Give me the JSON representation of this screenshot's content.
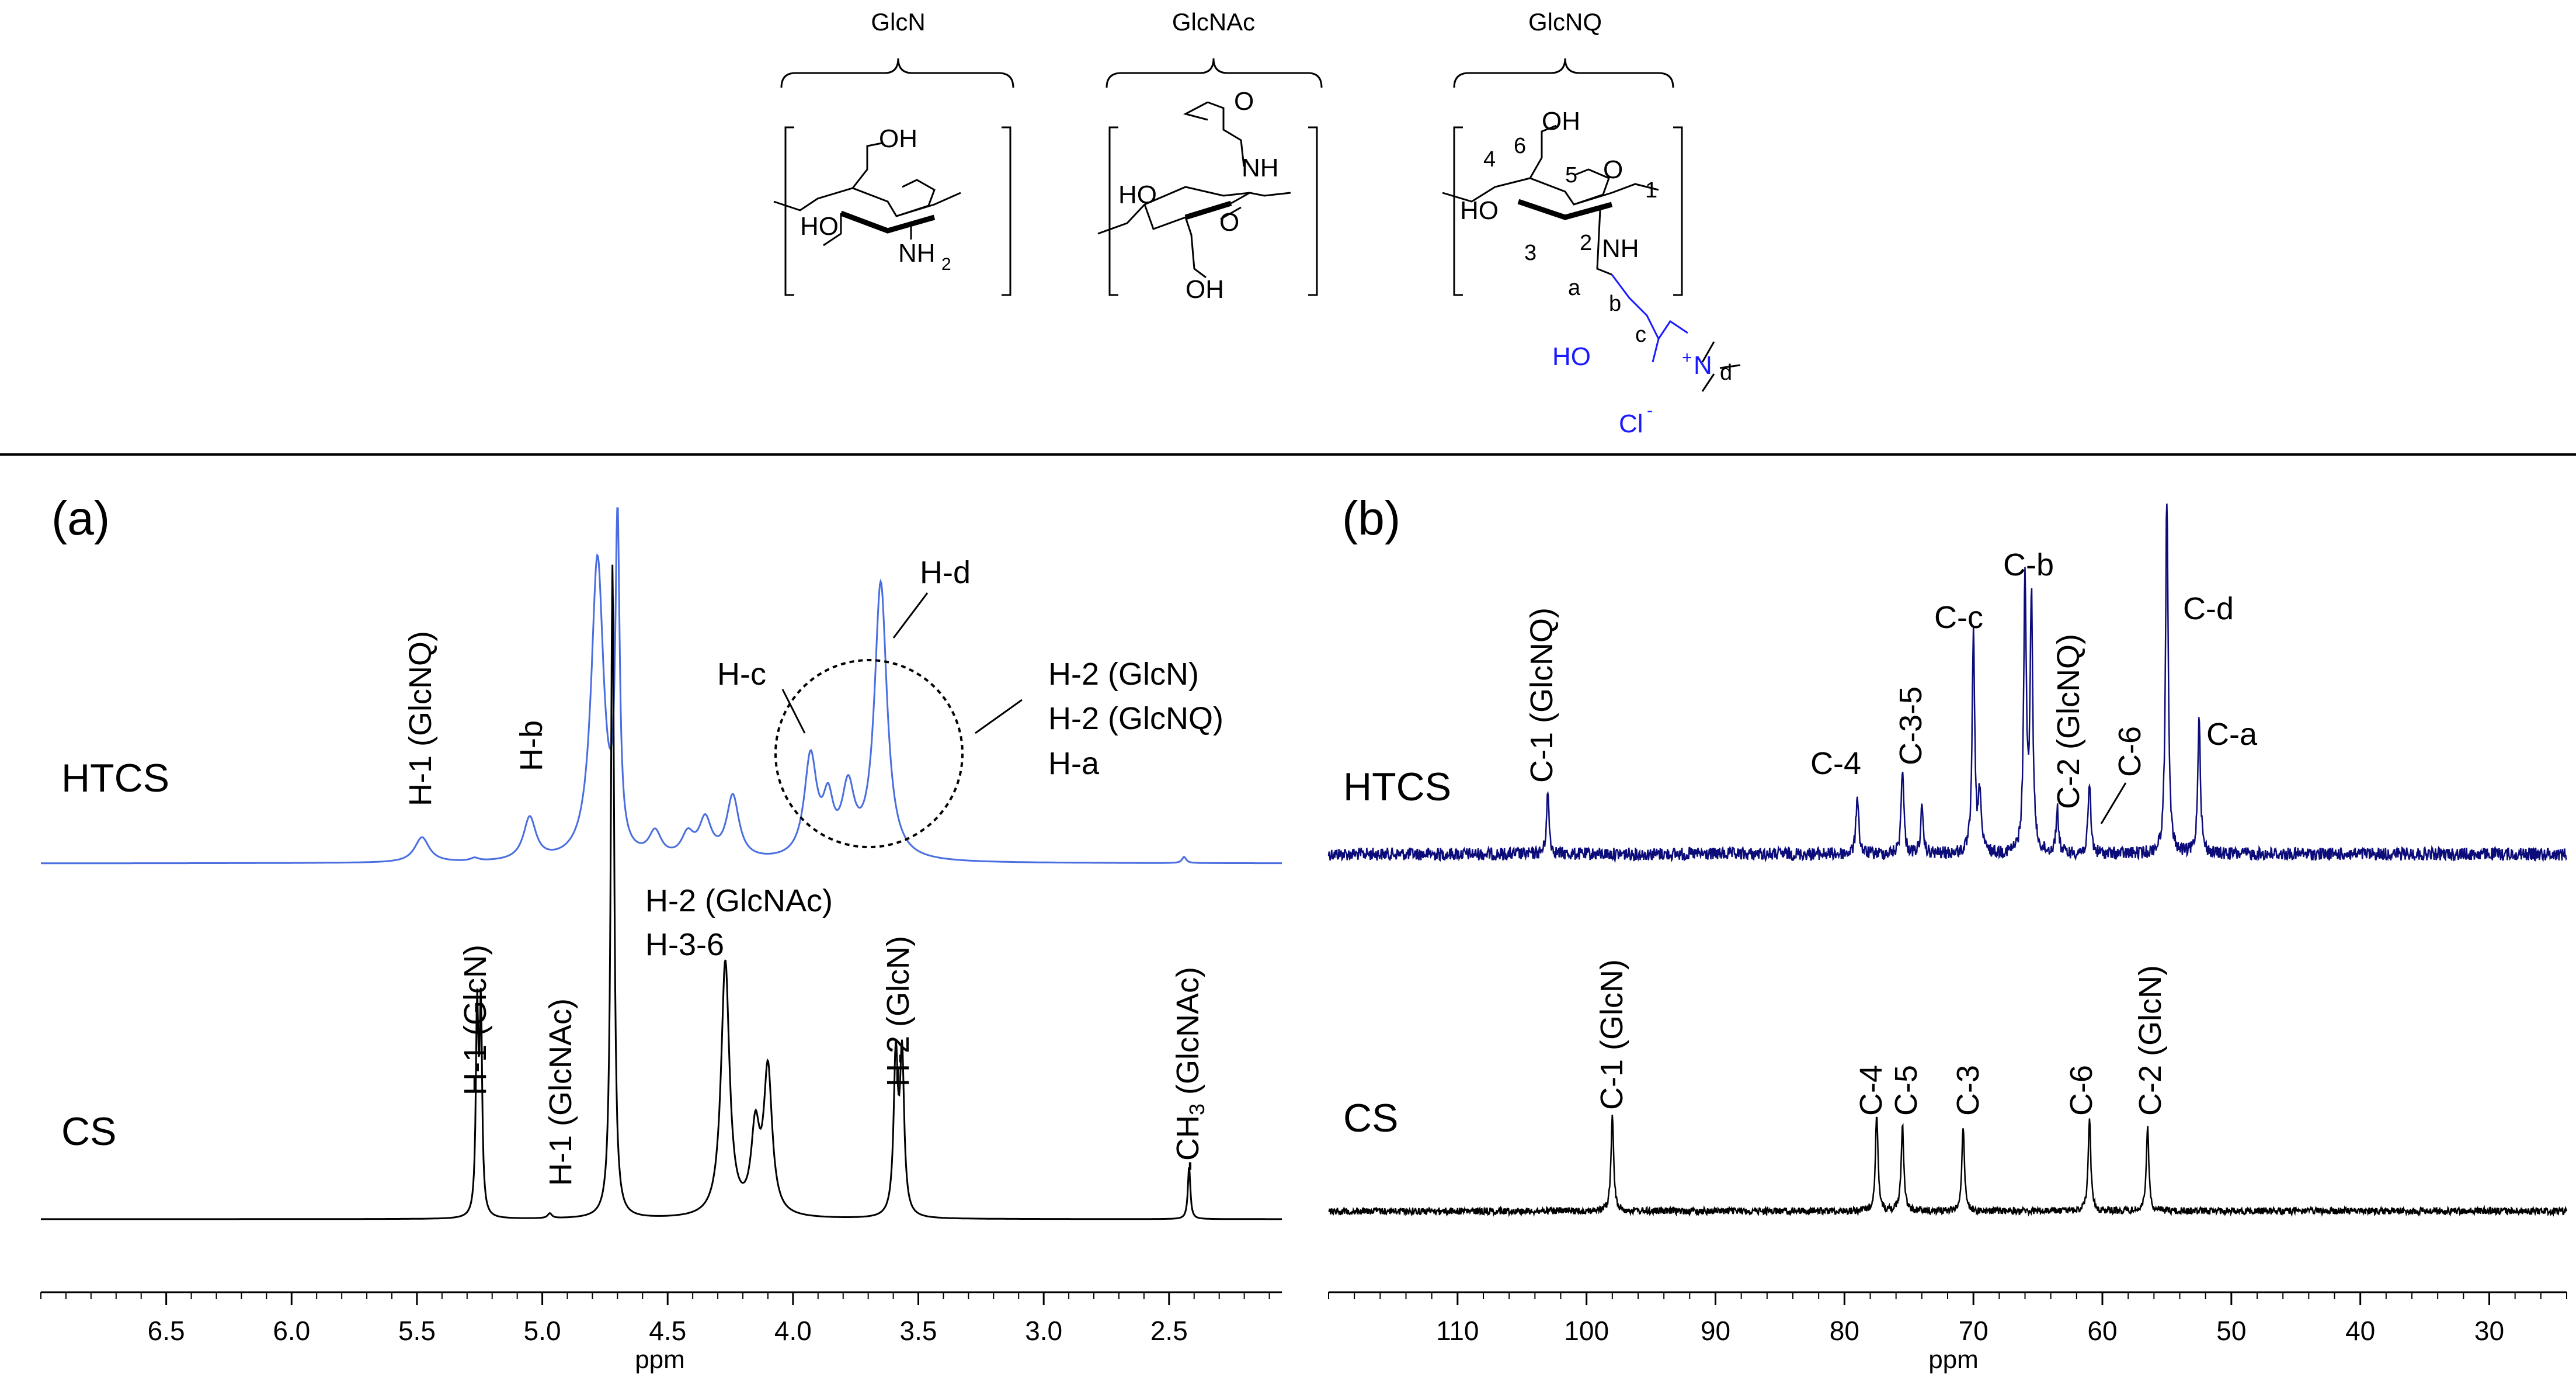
{
  "structures": {
    "glcn": "GlcN",
    "glcnac": "GlcNAc",
    "glcnq": "GlcNQ",
    "glcnq_labels": {
      "oh": "OH",
      "ho": "HO",
      "nh": "NH",
      "o": "O",
      "n6": "6",
      "n5": "5",
      "n4": "4",
      "n3": "3",
      "n2": "2",
      "n1": "1",
      "a": "a",
      "b": "b",
      "c": "c",
      "d": "d",
      "ho_chain": "HO",
      "n_plus": "N",
      "plus": "+",
      "cl": "Cl",
      "minus": "-"
    },
    "glcn_labels": {
      "oh": "OH",
      "ho": "HO",
      "nh": "NH",
      "sub2": "2"
    },
    "glcnac_labels": {
      "o_top": "O",
      "nh": "NH",
      "ho": "HO",
      "oh": "OH",
      "o_ring": "O"
    },
    "accent_color": "#1a1aff"
  },
  "chart_data": [
    {
      "type": "line",
      "panel_label": "(a)",
      "title": "",
      "xlabel": "ppm",
      "ylabel": "",
      "x_axis_reversed": true,
      "xlim": [
        7.0,
        2.05
      ],
      "xticks": [
        "6.5",
        "6.0",
        "5.5",
        "5.0",
        "4.5",
        "4.0",
        "3.5",
        "3.0",
        "2.5"
      ],
      "xtick_values": [
        6.5,
        6.0,
        5.5,
        5.0,
        4.5,
        4.0,
        3.5,
        3.0,
        2.5
      ],
      "series": [
        {
          "name": "HTCS",
          "color": "#4a6ee0",
          "peaks": [
            {
              "ppm": 5.48,
              "height": 0.1,
              "width": 0.035
            },
            {
              "ppm": 5.27,
              "height": 0.012,
              "width": 0.02
            },
            {
              "ppm": 5.05,
              "height": 0.17,
              "width": 0.03
            },
            {
              "ppm": 4.78,
              "height": 1.2,
              "width": 0.03
            },
            {
              "ppm": 4.7,
              "height": 1.3,
              "width": 0.01
            },
            {
              "ppm": 4.55,
              "height": 0.1,
              "width": 0.03
            },
            {
              "ppm": 4.42,
              "height": 0.09,
              "width": 0.03
            },
            {
              "ppm": 4.35,
              "height": 0.15,
              "width": 0.03
            },
            {
              "ppm": 4.24,
              "height": 0.25,
              "width": 0.03
            },
            {
              "ppm": 3.93,
              "height": 0.4,
              "width": 0.03
            },
            {
              "ppm": 3.86,
              "height": 0.2,
              "width": 0.025
            },
            {
              "ppm": 3.78,
              "height": 0.26,
              "width": 0.03
            },
            {
              "ppm": 3.65,
              "height": 1.1,
              "width": 0.03
            },
            {
              "ppm": 2.44,
              "height": 0.025,
              "width": 0.01
            }
          ],
          "annotations": [
            "H-1 (GlcNQ)",
            "H-b",
            "H-c",
            "H-d",
            "H-2 (GlcN)",
            "H-2 (GlcNQ)",
            "H-a"
          ]
        },
        {
          "name": "CS",
          "color": "#000000",
          "peaks": [
            {
              "ppm": 5.26,
              "height": 0.62,
              "width": 0.006
            },
            {
              "ppm": 5.245,
              "height": 0.62,
              "width": 0.006
            },
            {
              "ppm": 4.97,
              "height": 0.015,
              "width": 0.01
            },
            {
              "ppm": 4.72,
              "height": 2.0,
              "width": 0.008
            },
            {
              "ppm": 4.27,
              "height": 0.78,
              "width": 0.02
            },
            {
              "ppm": 4.15,
              "height": 0.25,
              "width": 0.02
            },
            {
              "ppm": 4.1,
              "height": 0.44,
              "width": 0.02
            },
            {
              "ppm": 3.59,
              "height": 0.48,
              "width": 0.01
            },
            {
              "ppm": 3.565,
              "height": 0.48,
              "width": 0.01
            },
            {
              "ppm": 2.42,
              "height": 0.16,
              "width": 0.006
            }
          ],
          "annotations": [
            "H-1 (GlcN)",
            "H-1 (GlcNAc)",
            "H-2 (GlcNAc)",
            "H-3-6",
            "H-2 (GlcN)",
            "-CH3 (GlcNAc)"
          ]
        }
      ],
      "labels": {
        "htcs": "HTCS",
        "cs": "CS",
        "h1_glcnq": "H-1 (GlcNQ)",
        "hb": "H-b",
        "hc": "H-c",
        "hd": "H-d",
        "h2_glcn_top": "H-2 (GlcN)",
        "h2_glcnq": "H-2 (GlcNQ)",
        "ha": "H-a",
        "h1_glcn": "H-1 (GlcN)",
        "h1_glcnac": "H-1 (GlcNAc)",
        "h2_glcnac": "H-2 (GlcNAc)",
        "h36": "H-3-6",
        "h2_glcn": "H-2 (GlcN)",
        "ch3_prefix": "-CH",
        "ch3_sub": "3",
        "ch3_suffix": " (GlcNAc)"
      }
    },
    {
      "type": "line",
      "panel_label": "(b)",
      "title": "",
      "xlabel": "ppm",
      "ylabel": "",
      "x_axis_reversed": true,
      "xlim": [
        120,
        24
      ],
      "xticks": [
        "110",
        "100",
        "90",
        "80",
        "70",
        "60",
        "50",
        "40",
        "30"
      ],
      "xtick_values": [
        110,
        100,
        90,
        80,
        70,
        60,
        50,
        40,
        30
      ],
      "series": [
        {
          "name": "HTCS",
          "color": "#0b0b7a",
          "peaks": [
            {
              "ppm": 103.0,
              "height": 0.35
            },
            {
              "ppm": 79.0,
              "height": 0.35
            },
            {
              "ppm": 75.5,
              "height": 0.5
            },
            {
              "ppm": 74.0,
              "height": 0.25
            },
            {
              "ppm": 70.0,
              "height": 1.25
            },
            {
              "ppm": 69.5,
              "height": 0.35
            },
            {
              "ppm": 66.0,
              "height": 1.55
            },
            {
              "ppm": 65.5,
              "height": 1.45
            },
            {
              "ppm": 63.5,
              "height": 0.25
            },
            {
              "ppm": 61.0,
              "height": 0.4
            },
            {
              "ppm": 55.0,
              "height": 2.1
            },
            {
              "ppm": 52.5,
              "height": 0.8
            }
          ],
          "annotations": [
            "C-1 (GlcNQ)",
            "C-4",
            "C-3-5",
            "C-c",
            "C-b",
            "C-2 (GlcNQ)",
            "C-6",
            "C-d",
            "C-a"
          ]
        },
        {
          "name": "CS",
          "color": "#000000",
          "peaks": [
            {
              "ppm": 98.0,
              "height": 0.55
            },
            {
              "ppm": 77.5,
              "height": 0.55
            },
            {
              "ppm": 75.5,
              "height": 0.5
            },
            {
              "ppm": 70.8,
              "height": 0.48
            },
            {
              "ppm": 61.0,
              "height": 0.52
            },
            {
              "ppm": 56.5,
              "height": 0.48
            }
          ],
          "annotations": [
            "C-1 (GlcN)",
            "C-4",
            "C-5",
            "C-3",
            "C-6",
            "C-2 (GlcN)"
          ]
        }
      ],
      "labels": {
        "htcs": "HTCS",
        "cs": "CS",
        "c1_glcnq": "C-1 (GlcNQ)",
        "c4": "C-4",
        "c35": "C-3-5",
        "cc": "C-c",
        "cb": "C-b",
        "c2_glcnq": "C-2 (GlcNQ)",
        "c6": "C-6",
        "cd": "C-d",
        "ca": "C-a",
        "c1_glcn": "C-1 (GlcN)",
        "c4_cs": "C-4",
        "c5_cs": "C-5",
        "c3_cs": "C-3",
        "c6_cs": "C-6",
        "c2_glcn": "C-2 (GlcN)"
      }
    }
  ]
}
